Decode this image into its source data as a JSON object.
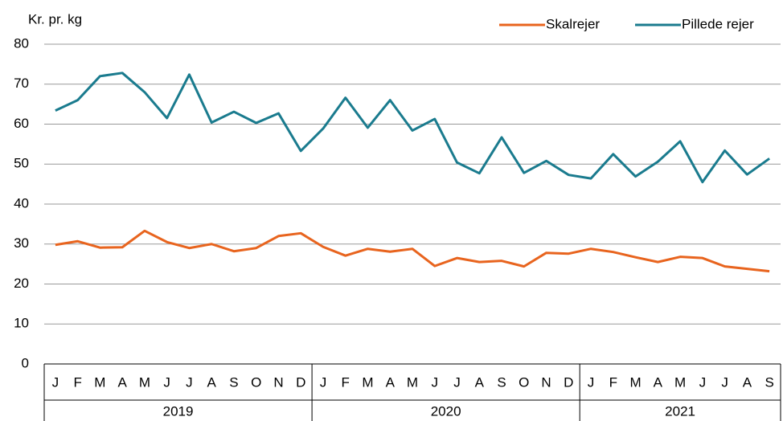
{
  "chart_data": {
    "type": "line",
    "y_label": "Kr. pr. kg",
    "categories": [
      "J",
      "F",
      "M",
      "A",
      "M",
      "J",
      "J",
      "A",
      "S",
      "O",
      "N",
      "D",
      "J",
      "F",
      "M",
      "A",
      "M",
      "J",
      "J",
      "A",
      "S",
      "O",
      "N",
      "D",
      "J",
      "F",
      "M",
      "A",
      "M",
      "J",
      "J",
      "A",
      "S"
    ],
    "years": [
      "2019",
      "2020",
      "2021"
    ],
    "series": [
      {
        "name": "Skalrejer",
        "color": "#e8641e",
        "values": [
          29.8,
          30.7,
          29.1,
          29.2,
          33.3,
          30.5,
          29.0,
          30.0,
          28.2,
          29.0,
          32.0,
          32.7,
          29.3,
          27.1,
          28.8,
          28.1,
          28.8,
          24.5,
          26.5,
          25.5,
          25.8,
          24.4,
          27.8,
          27.6,
          28.8,
          28.0,
          26.7,
          25.5,
          26.8,
          26.5,
          24.4,
          23.8,
          23.2
        ]
      },
      {
        "name": "Pillede rejer",
        "color": "#1a7b8e",
        "values": [
          63.4,
          66.0,
          72.0,
          72.8,
          68.0,
          61.5,
          72.4,
          60.4,
          63.1,
          60.3,
          62.7,
          53.3,
          58.9,
          66.6,
          59.1,
          66.0,
          58.4,
          61.3,
          50.4,
          47.7,
          56.7,
          47.8,
          50.8,
          47.3,
          46.4,
          52.5,
          46.9,
          50.6,
          55.7,
          45.5,
          53.4,
          47.4,
          51.4
        ]
      }
    ],
    "ylim": [
      0,
      80
    ],
    "yticks": [
      0,
      10,
      20,
      30,
      40,
      50,
      60,
      70,
      80
    ],
    "grid": true
  }
}
